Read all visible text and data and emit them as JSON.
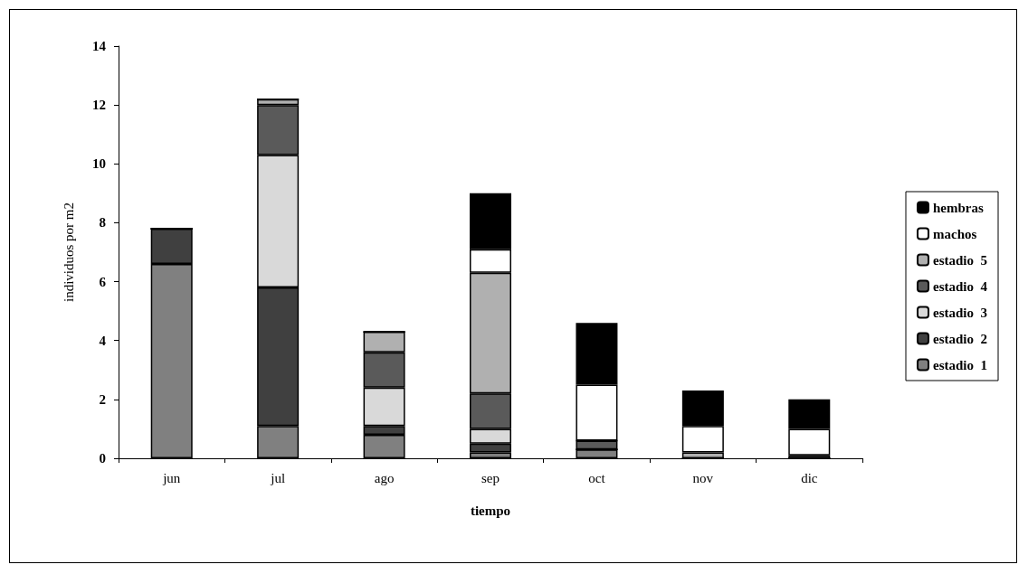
{
  "chart_data": {
    "type": "bar",
    "stacked": true,
    "xlabel": "tiempo",
    "ylabel": "individuos por m2",
    "categories": [
      "jun",
      "jul",
      "ago",
      "sep",
      "oct",
      "nov",
      "dic"
    ],
    "series": [
      {
        "name": "estadio  1",
        "color": "#808080",
        "values": [
          6.6,
          1.1,
          0.8,
          0.2,
          0.3,
          0,
          0
        ]
      },
      {
        "name": "estadio  2",
        "color": "#404040",
        "values": [
          1.2,
          4.7,
          0.3,
          0.3,
          0,
          0,
          0
        ]
      },
      {
        "name": "estadio  3",
        "color": "#d9d9d9",
        "values": [
          0,
          4.5,
          1.3,
          0.5,
          0,
          0,
          0
        ]
      },
      {
        "name": "estadio  4",
        "color": "#5a5a5a",
        "values": [
          0,
          1.7,
          1.2,
          1.2,
          0.3,
          0,
          0
        ]
      },
      {
        "name": "estadio  5",
        "color": "#b0b0b0",
        "values": [
          0,
          0.2,
          0.7,
          4.1,
          0,
          0.2,
          0.1
        ]
      },
      {
        "name": "machos",
        "color": "#ffffff",
        "values": [
          0,
          0,
          0,
          0.8,
          1.9,
          0.9,
          0.9
        ]
      },
      {
        "name": "hembras",
        "color": "#000000",
        "values": [
          0,
          0,
          0,
          1.9,
          2.1,
          1.2,
          1.0
        ]
      }
    ],
    "ylim": [
      0,
      14
    ],
    "yticks": [
      0,
      2,
      4,
      6,
      8,
      10,
      12,
      14
    ],
    "grid": false,
    "legend": "right"
  }
}
